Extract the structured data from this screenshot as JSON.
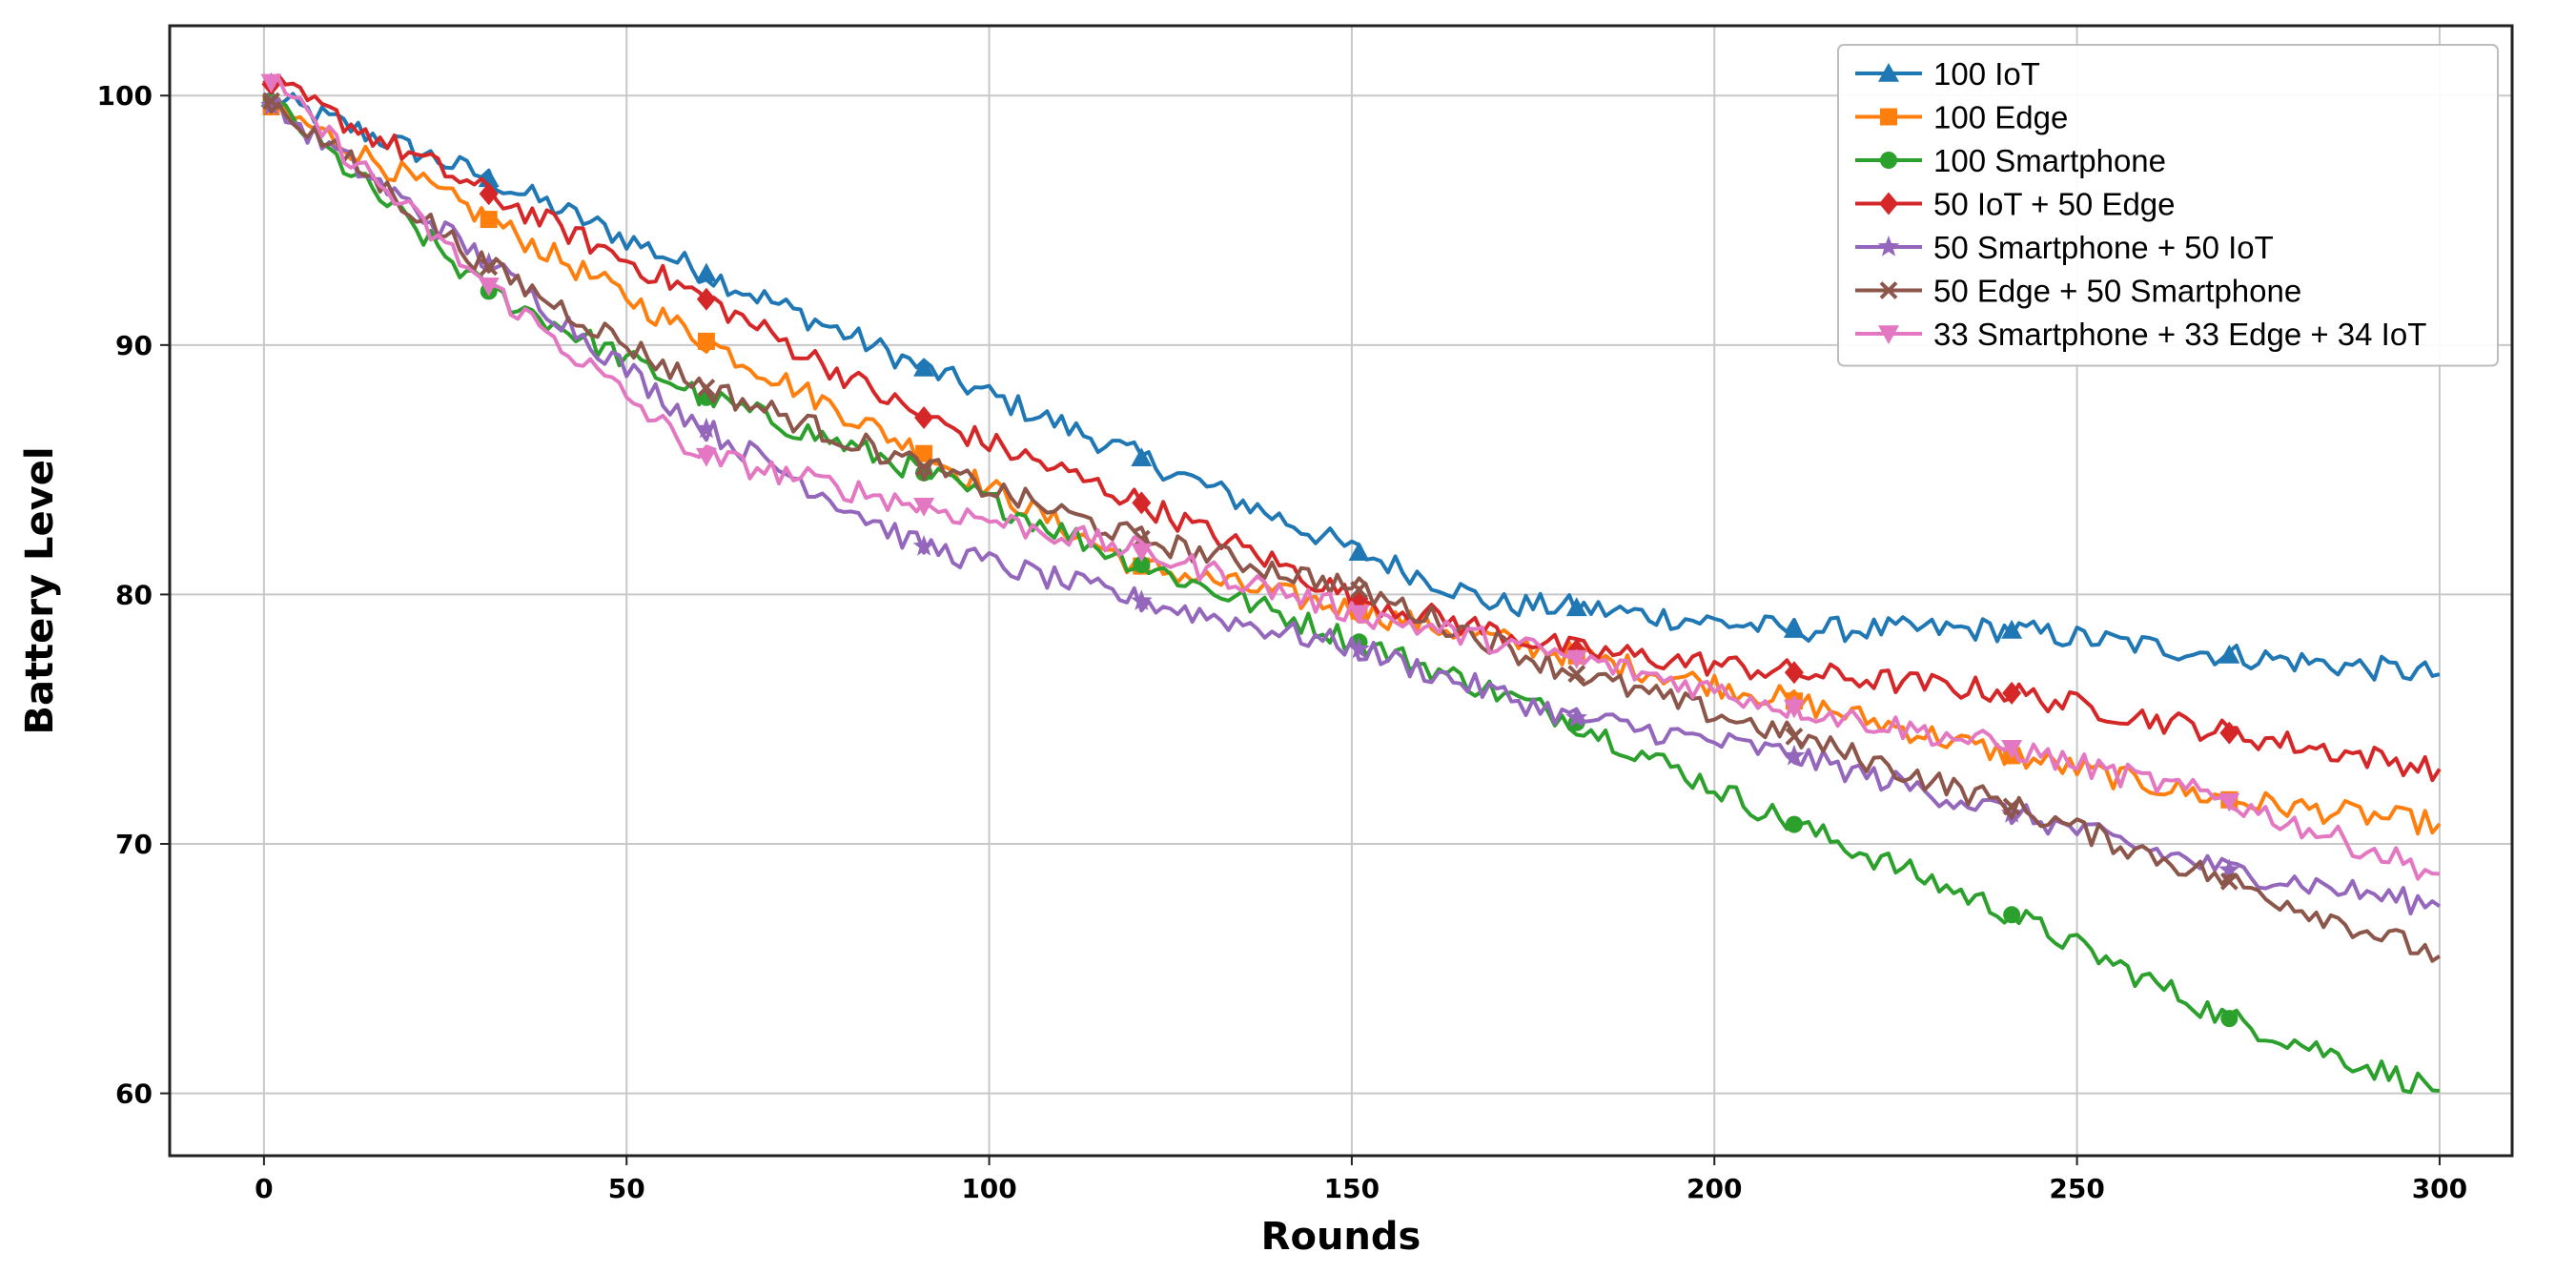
{
  "chart_data": {
    "type": "line",
    "title": "",
    "xlabel": "Rounds",
    "ylabel": "Battery Level",
    "xlim": [
      -13,
      310
    ],
    "ylim": [
      57.5,
      102.8
    ],
    "xticks": [
      0,
      50,
      100,
      150,
      200,
      250,
      300
    ],
    "yticks": [
      60,
      70,
      80,
      90,
      100
    ],
    "grid": true,
    "legend_position": "top-right",
    "marker_every": 30,
    "series": [
      {
        "name": "100 IoT",
        "color": "#1f77b4",
        "marker": "triangle",
        "points": [
          [
            0,
            100
          ],
          [
            30,
            96.8
          ],
          [
            60,
            93.0
          ],
          [
            90,
            89.2
          ],
          [
            120,
            85.6
          ],
          [
            150,
            81.8
          ],
          [
            170,
            79.6
          ],
          [
            180,
            79.5
          ],
          [
            210,
            78.6
          ],
          [
            240,
            78.6
          ],
          [
            270,
            77.6
          ],
          [
            300,
            76.8
          ]
        ]
      },
      {
        "name": "100 Edge",
        "color": "#ff7f0e",
        "marker": "square",
        "points": [
          [
            0,
            99.7
          ],
          [
            30,
            95.2
          ],
          [
            60,
            90.3
          ],
          [
            90,
            85.8
          ],
          [
            120,
            81.2
          ],
          [
            150,
            79.4
          ],
          [
            180,
            77.6
          ],
          [
            210,
            75.8
          ],
          [
            240,
            73.6
          ],
          [
            270,
            71.8
          ],
          [
            300,
            70.8
          ]
        ]
      },
      {
        "name": "100 Smartphone",
        "color": "#2ca02c",
        "marker": "circle",
        "points": [
          [
            0,
            100
          ],
          [
            30,
            92.3
          ],
          [
            60,
            88.0
          ],
          [
            90,
            85.0
          ],
          [
            120,
            81.3
          ],
          [
            150,
            78.2
          ],
          [
            180,
            75.0
          ],
          [
            210,
            70.9
          ],
          [
            240,
            67.3
          ],
          [
            270,
            63.1
          ],
          [
            300,
            60.1
          ]
        ]
      },
      {
        "name": "50 IoT + 50 Edge",
        "color": "#d62728",
        "marker": "diamond",
        "points": [
          [
            0,
            100.6
          ],
          [
            30,
            96.2
          ],
          [
            60,
            92.0
          ],
          [
            90,
            87.2
          ],
          [
            120,
            83.8
          ],
          [
            150,
            79.9
          ],
          [
            180,
            77.8
          ],
          [
            210,
            76.9
          ],
          [
            240,
            76.1
          ],
          [
            270,
            74.5
          ],
          [
            300,
            73.0
          ]
        ]
      },
      {
        "name": "50 Smartphone + 50 IoT",
        "color": "#9467bd",
        "marker": "star",
        "points": [
          [
            0,
            99.8
          ],
          [
            30,
            93.5
          ],
          [
            60,
            86.8
          ],
          [
            90,
            82.0
          ],
          [
            120,
            79.8
          ],
          [
            150,
            77.9
          ],
          [
            180,
            75.1
          ],
          [
            210,
            73.6
          ],
          [
            240,
            71.3
          ],
          [
            270,
            69.0
          ],
          [
            300,
            67.5
          ]
        ]
      },
      {
        "name": "50 Edge + 50 Smartphone",
        "color": "#8c564b",
        "marker": "x",
        "points": [
          [
            0,
            100
          ],
          [
            30,
            93.3
          ],
          [
            60,
            88.4
          ],
          [
            90,
            85.2
          ],
          [
            120,
            82.3
          ],
          [
            150,
            80.3
          ],
          [
            180,
            76.9
          ],
          [
            210,
            74.4
          ],
          [
            240,
            71.6
          ],
          [
            270,
            68.6
          ],
          [
            300,
            65.5
          ]
        ]
      },
      {
        "name": "33 Smartphone + 33 Edge + 34 IoT",
        "color": "#e377c2",
        "marker": "triangle-down",
        "points": [
          [
            0,
            100.8
          ],
          [
            30,
            92.6
          ],
          [
            60,
            85.6
          ],
          [
            90,
            83.6
          ],
          [
            120,
            81.8
          ],
          [
            150,
            79.3
          ],
          [
            180,
            77.5
          ],
          [
            210,
            75.5
          ],
          [
            240,
            73.9
          ],
          [
            270,
            71.8
          ],
          [
            300,
            68.8
          ]
        ]
      }
    ]
  }
}
